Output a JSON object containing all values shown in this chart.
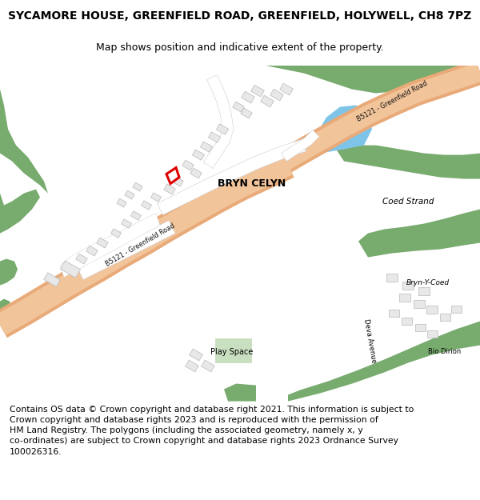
{
  "title": "SYCAMORE HOUSE, GREENFIELD ROAD, GREENFIELD, HOLYWELL, CH8 7PZ",
  "subtitle": "Map shows position and indicative extent of the property.",
  "footer": "Contains OS data © Crown copyright and database right 2021. This information is subject to Crown copyright and database rights 2023 and is reproduced with the permission of HM Land Registry. The polygons (including the associated geometry, namely x, y co-ordinates) are subject to Crown copyright and database rights 2023 Ordnance Survey 100026316.",
  "bg": "#ffffff",
  "green": "#78ab6e",
  "light_green": "#c8dfc0",
  "road_fill": "#f2c49a",
  "road_edge": "#e8aa78",
  "bld_fill": "#e8e8e8",
  "bld_edge": "#b8b8b8",
  "water": "#7ec4e8",
  "plot_edge": "#e00000",
  "title_size": 10,
  "subtitle_size": 9,
  "footer_size": 7.8
}
